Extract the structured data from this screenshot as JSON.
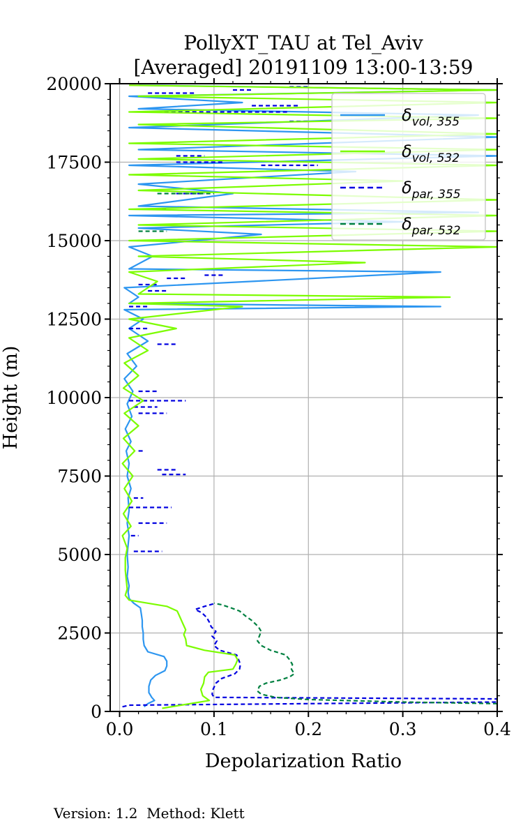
{
  "chart_data": {
    "type": "line",
    "title_lines": [
      "PollyXT_TAU at Tel_Aviv",
      "[Averaged] 20191109 13:00-13:59"
    ],
    "xlabel": "Depolarization Ratio",
    "ylabel": "Height (m)",
    "xlim": [
      -0.01,
      0.4
    ],
    "ylim": [
      0,
      20000
    ],
    "x_ticks": [
      0.0,
      0.1,
      0.2,
      0.3,
      0.4
    ],
    "x_tick_labels": [
      "0.0",
      "0.1",
      "0.2",
      "0.3",
      "0.4"
    ],
    "y_ticks": [
      0,
      2500,
      5000,
      7500,
      10000,
      12500,
      15000,
      17500,
      20000
    ],
    "y_tick_labels": [
      "0",
      "2500",
      "5000",
      "7500",
      "10000",
      "12500",
      "15000",
      "17500",
      "20000"
    ],
    "grid": true,
    "legend_placement": "top-right",
    "series": [
      {
        "name": "δvol,355",
        "name_main": "δ",
        "name_sub": "vol, 355",
        "color": "#2d96f0",
        "style": "solid",
        "points": [
          [
            0.026,
            150
          ],
          [
            0.03,
            250
          ],
          [
            0.037,
            350
          ],
          [
            0.034,
            450
          ],
          [
            0.031,
            600
          ],
          [
            0.031,
            800
          ],
          [
            0.033,
            1000
          ],
          [
            0.038,
            1150
          ],
          [
            0.048,
            1300
          ],
          [
            0.05,
            1450
          ],
          [
            0.05,
            1600
          ],
          [
            0.047,
            1750
          ],
          [
            0.03,
            1900
          ],
          [
            0.026,
            2100
          ],
          [
            0.025,
            2300
          ],
          [
            0.025,
            2500
          ],
          [
            0.024,
            2700
          ],
          [
            0.024,
            2900
          ],
          [
            0.023,
            3100
          ],
          [
            0.022,
            3300
          ],
          [
            0.015,
            3450
          ],
          [
            0.01,
            3600
          ],
          [
            0.009,
            3800
          ],
          [
            0.01,
            4000
          ],
          [
            0.008,
            4300
          ],
          [
            0.009,
            4600
          ],
          [
            0.008,
            5000
          ],
          [
            0.009,
            5300
          ],
          [
            0.01,
            5600
          ],
          [
            0.008,
            6000
          ],
          [
            0.01,
            6400
          ],
          [
            0.009,
            6800
          ],
          [
            0.012,
            7100
          ],
          [
            0.008,
            7500
          ],
          [
            0.01,
            7900
          ],
          [
            0.007,
            8300
          ],
          [
            0.012,
            8600
          ],
          [
            0.006,
            9000
          ],
          [
            0.013,
            9400
          ],
          [
            0.008,
            9800
          ],
          [
            0.014,
            10200
          ],
          [
            0.005,
            10600
          ],
          [
            0.018,
            11000
          ],
          [
            0.008,
            11400
          ],
          [
            0.03,
            11800
          ],
          [
            0.01,
            12200
          ],
          [
            0.025,
            12500
          ],
          [
            0.005,
            12800
          ],
          [
            0.34,
            12900
          ],
          [
            0.01,
            13000
          ],
          [
            0.02,
            13200
          ],
          [
            0.005,
            13500
          ],
          [
            0.34,
            14000
          ],
          [
            0.01,
            14100
          ],
          [
            0.035,
            14500
          ],
          [
            0.01,
            14800
          ],
          [
            0.15,
            15200
          ],
          [
            0.02,
            15400
          ],
          [
            0.3,
            15600
          ],
          [
            0.01,
            15800
          ],
          [
            0.38,
            15900
          ],
          [
            0.02,
            16100
          ],
          [
            0.12,
            16500
          ],
          [
            0.02,
            16800
          ],
          [
            0.25,
            17200
          ],
          [
            0.01,
            17400
          ],
          [
            0.4,
            17700
          ],
          [
            0.02,
            17900
          ],
          [
            0.4,
            18300
          ],
          [
            0.01,
            18600
          ],
          [
            0.38,
            19000
          ],
          [
            0.02,
            19200
          ],
          [
            0.13,
            19400
          ],
          [
            0.01,
            19600
          ],
          [
            0.4,
            19800
          ],
          [
            0.02,
            19950
          ]
        ]
      },
      {
        "name": "δvol,532",
        "name_main": "δ",
        "name_sub": "vol, 532",
        "color": "#7cfc00",
        "style": "solid",
        "points": [
          [
            0.045,
            100
          ],
          [
            0.065,
            200
          ],
          [
            0.095,
            350
          ],
          [
            0.088,
            500
          ],
          [
            0.086,
            700
          ],
          [
            0.089,
            900
          ],
          [
            0.09,
            1100
          ],
          [
            0.094,
            1250
          ],
          [
            0.12,
            1350
          ],
          [
            0.123,
            1500
          ],
          [
            0.125,
            1650
          ],
          [
            0.122,
            1800
          ],
          [
            0.09,
            1950
          ],
          [
            0.071,
            2100
          ],
          [
            0.07,
            2300
          ],
          [
            0.068,
            2450
          ],
          [
            0.07,
            2600
          ],
          [
            0.067,
            2800
          ],
          [
            0.064,
            3000
          ],
          [
            0.061,
            3200
          ],
          [
            0.05,
            3350
          ],
          [
            0.03,
            3450
          ],
          [
            0.01,
            3550
          ],
          [
            0.006,
            3700
          ],
          [
            0.008,
            3900
          ],
          [
            0.007,
            4200
          ],
          [
            0.006,
            4500
          ],
          [
            0.006,
            4900
          ],
          [
            0.008,
            5200
          ],
          [
            0.003,
            5600
          ],
          [
            0.012,
            5900
          ],
          [
            0.004,
            6300
          ],
          [
            0.013,
            6700
          ],
          [
            0.005,
            7100
          ],
          [
            0.014,
            7500
          ],
          [
            0.003,
            7900
          ],
          [
            0.016,
            8300
          ],
          [
            0.004,
            8700
          ],
          [
            0.02,
            9100
          ],
          [
            0.005,
            9500
          ],
          [
            0.025,
            9900
          ],
          [
            0.004,
            10300
          ],
          [
            0.02,
            10700
          ],
          [
            0.005,
            11100
          ],
          [
            0.03,
            11500
          ],
          [
            0.01,
            11900
          ],
          [
            0.06,
            12200
          ],
          [
            0.01,
            12500
          ],
          [
            0.13,
            12900
          ],
          [
            0.01,
            13000
          ],
          [
            0.35,
            13200
          ],
          [
            0.02,
            13300
          ],
          [
            0.04,
            13700
          ],
          [
            0.01,
            14000
          ],
          [
            0.26,
            14300
          ],
          [
            0.02,
            14500
          ],
          [
            0.4,
            14800
          ],
          [
            0.01,
            15000
          ],
          [
            0.4,
            15300
          ],
          [
            0.02,
            15500
          ],
          [
            0.4,
            15800
          ],
          [
            0.01,
            16000
          ],
          [
            0.4,
            16300
          ],
          [
            0.02,
            16600
          ],
          [
            0.3,
            16900
          ],
          [
            0.01,
            17100
          ],
          [
            0.4,
            17400
          ],
          [
            0.02,
            17600
          ],
          [
            0.4,
            17900
          ],
          [
            0.01,
            18100
          ],
          [
            0.4,
            18400
          ],
          [
            0.02,
            18700
          ],
          [
            0.4,
            18900
          ],
          [
            0.01,
            19100
          ],
          [
            0.4,
            19400
          ],
          [
            0.02,
            19600
          ],
          [
            0.4,
            19800
          ],
          [
            0.01,
            19950
          ]
        ]
      },
      {
        "name": "δpar,355",
        "name_main": "δ",
        "name_sub": "par, 355",
        "color": "#0000e0",
        "style": "dashed",
        "points": [
          [
            0.003,
            150
          ],
          [
            0.01,
            200
          ],
          [
            0.4,
            300
          ],
          [
            0.4,
            400
          ],
          [
            0.1,
            450
          ],
          [
            0.098,
            550
          ],
          [
            0.099,
            700
          ],
          [
            0.102,
            900
          ],
          [
            0.108,
            1050
          ],
          [
            0.122,
            1200
          ],
          [
            0.127,
            1350
          ],
          [
            0.128,
            1500
          ],
          [
            0.126,
            1650
          ],
          [
            0.124,
            1800
          ],
          [
            0.106,
            1950
          ],
          [
            0.1,
            2100
          ],
          [
            0.103,
            2250
          ],
          [
            0.098,
            2400
          ],
          [
            0.102,
            2550
          ],
          [
            0.097,
            2700
          ],
          [
            0.095,
            2850
          ],
          [
            0.092,
            3000
          ],
          [
            0.087,
            3150
          ],
          [
            0.08,
            3250
          ],
          [
            0.09,
            3350
          ],
          [
            0.102,
            3450
          ]
        ],
        "segments": [
          [
            [
              0.015,
              5100
            ],
            [
              0.045,
              5100
            ]
          ],
          [
            [
              0.012,
              5600
            ],
            [
              0.02,
              5600
            ]
          ],
          [
            [
              0.02,
              6000
            ],
            [
              0.05,
              6000
            ]
          ],
          [
            [
              0.01,
              6500
            ],
            [
              0.055,
              6500
            ]
          ],
          [
            [
              0.015,
              6800
            ],
            [
              0.025,
              6800
            ]
          ],
          [
            [
              0.045,
              7550
            ],
            [
              0.07,
              7550
            ]
          ],
          [
            [
              0.04,
              7700
            ],
            [
              0.06,
              7700
            ]
          ],
          [
            [
              0.02,
              8300
            ],
            [
              0.025,
              8300
            ]
          ],
          [
            [
              0.02,
              9500
            ],
            [
              0.05,
              9500
            ]
          ],
          [
            [
              0.015,
              9700
            ],
            [
              0.04,
              9700
            ]
          ],
          [
            [
              0.01,
              9900
            ],
            [
              0.07,
              9900
            ]
          ],
          [
            [
              0.02,
              10200
            ],
            [
              0.04,
              10200
            ]
          ],
          [
            [
              0.04,
              11700
            ],
            [
              0.06,
              11700
            ]
          ],
          [
            [
              0.01,
              12200
            ],
            [
              0.03,
              12200
            ]
          ],
          [
            [
              0.01,
              12900
            ],
            [
              0.03,
              12900
            ]
          ],
          [
            [
              0.03,
              13400
            ],
            [
              0.05,
              13400
            ]
          ],
          [
            [
              0.02,
              13600
            ],
            [
              0.04,
              13600
            ]
          ],
          [
            [
              0.05,
              13800
            ],
            [
              0.07,
              13800
            ]
          ],
          [
            [
              0.09,
              13900
            ],
            [
              0.11,
              13900
            ]
          ],
          [
            [
              0.03,
              16000
            ],
            [
              0.05,
              16000
            ]
          ],
          [
            [
              0.06,
              16500
            ],
            [
              0.09,
              16500
            ]
          ],
          [
            [
              0.15,
              17400
            ],
            [
              0.21,
              17400
            ]
          ],
          [
            [
              0.06,
              17500
            ],
            [
              0.11,
              17500
            ]
          ],
          [
            [
              0.06,
              17700
            ],
            [
              0.09,
              17700
            ]
          ],
          [
            [
              0.18,
              18800
            ],
            [
              0.2,
              18800
            ]
          ],
          [
            [
              0.04,
              19100
            ],
            [
              0.18,
              19100
            ]
          ],
          [
            [
              0.14,
              19300
            ],
            [
              0.19,
              19300
            ]
          ],
          [
            [
              0.03,
              19700
            ],
            [
              0.08,
              19700
            ]
          ],
          [
            [
              0.12,
              19800
            ],
            [
              0.14,
              19800
            ]
          ],
          [
            [
              0.18,
              19900
            ],
            [
              0.2,
              19900
            ]
          ]
        ]
      },
      {
        "name": "δpar,532",
        "name_main": "δ",
        "name_sub": "par, 532",
        "color": "#008040",
        "style": "dashed",
        "points": [
          [
            0.4,
            250
          ],
          [
            0.3,
            300
          ],
          [
            0.2,
            380
          ],
          [
            0.165,
            450
          ],
          [
            0.15,
            550
          ],
          [
            0.146,
            650
          ],
          [
            0.148,
            800
          ],
          [
            0.155,
            900
          ],
          [
            0.17,
            1000
          ],
          [
            0.18,
            1100
          ],
          [
            0.185,
            1200
          ],
          [
            0.182,
            1350
          ],
          [
            0.183,
            1500
          ],
          [
            0.18,
            1650
          ],
          [
            0.176,
            1800
          ],
          [
            0.16,
            1950
          ],
          [
            0.15,
            2100
          ],
          [
            0.146,
            2250
          ],
          [
            0.148,
            2400
          ],
          [
            0.15,
            2550
          ],
          [
            0.147,
            2700
          ],
          [
            0.14,
            2900
          ],
          [
            0.133,
            3050
          ],
          [
            0.127,
            3200
          ],
          [
            0.118,
            3300
          ],
          [
            0.108,
            3400
          ],
          [
            0.1,
            3450
          ]
        ],
        "segments": [
          [
            [
              0.04,
              16500
            ],
            [
              0.1,
              16500
            ]
          ],
          [
            [
              0.02,
              15300
            ],
            [
              0.05,
              15300
            ]
          ]
        ]
      }
    ]
  },
  "footer": {
    "text": "Version: 1.2  Method: Klett"
  }
}
